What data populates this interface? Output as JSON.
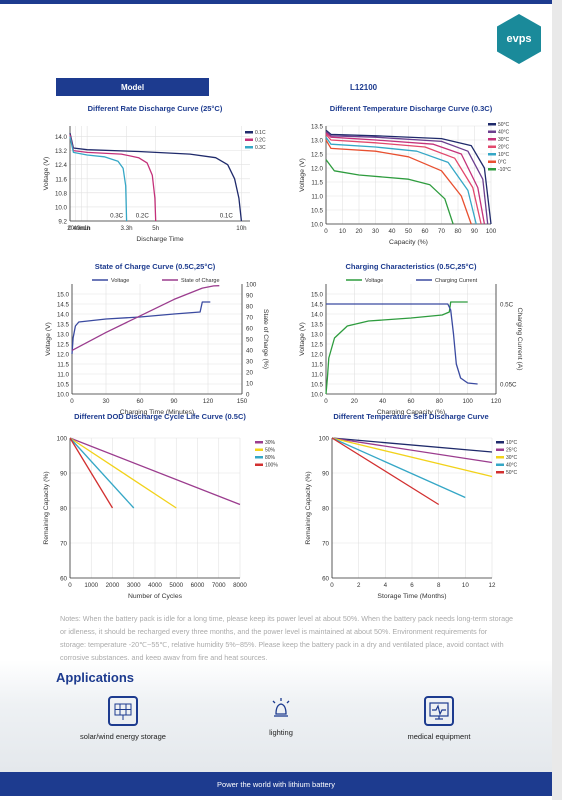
{
  "brand": {
    "logo_text": "evps"
  },
  "spec": {
    "model_label": "Model",
    "model_value": "L12100"
  },
  "chart_data": [
    {
      "id": "c1",
      "type": "line",
      "title": "Different Rate Discharge Curve (25°C)",
      "xlabel": "Discharge Time",
      "ylabel": "Voltage (V)",
      "xlim": [
        0,
        10.5
      ],
      "ylim": [
        9.2,
        14.6
      ],
      "xticks": [
        {
          "v": 0,
          "l": "0"
        },
        {
          "v": 0.33,
          "l": "20min"
        },
        {
          "v": 0.67,
          "l": "40min"
        },
        {
          "v": 1,
          "l": "1h"
        },
        {
          "v": 3.3,
          "l": "3.3h"
        },
        {
          "v": 5,
          "l": "5h"
        },
        {
          "v": 10,
          "l": "10h"
        }
      ],
      "yticks": [
        9.2,
        10.0,
        10.8,
        11.6,
        12.4,
        13.2,
        14.0
      ],
      "legend": "right",
      "annotations": [
        {
          "x": 3.1,
          "y": 9.4,
          "text": "0.3C"
        },
        {
          "x": 4.6,
          "y": 9.4,
          "text": "0.2C"
        },
        {
          "x": 9.5,
          "y": 9.4,
          "text": "0.1C"
        }
      ],
      "series": [
        {
          "name": "0.1C",
          "color": "#1f2a6b",
          "points": [
            [
              0,
              14.2
            ],
            [
              0.2,
              13.35
            ],
            [
              1,
              13.25
            ],
            [
              4,
              13.15
            ],
            [
              7,
              13.0
            ],
            [
              8.5,
              12.8
            ],
            [
              9.2,
              12.4
            ],
            [
              9.6,
              11.6
            ],
            [
              9.85,
              10.5
            ],
            [
              10,
              9.2
            ]
          ]
        },
        {
          "name": "0.2C",
          "color": "#c4317a",
          "points": [
            [
              0,
              14.1
            ],
            [
              0.2,
              13.2
            ],
            [
              1,
              13.1
            ],
            [
              3,
              13.0
            ],
            [
              4,
              12.8
            ],
            [
              4.5,
              12.5
            ],
            [
              4.8,
              11.8
            ],
            [
              4.95,
              10.5
            ],
            [
              5,
              9.2
            ]
          ]
        },
        {
          "name": "0.3C",
          "color": "#35a7c6",
          "points": [
            [
              0,
              14.0
            ],
            [
              0.2,
              13.1
            ],
            [
              1,
              12.95
            ],
            [
              2,
              12.85
            ],
            [
              2.8,
              12.6
            ],
            [
              3.1,
              12.2
            ],
            [
              3.25,
              11.2
            ],
            [
              3.3,
              9.2
            ]
          ]
        }
      ]
    },
    {
      "id": "c2",
      "type": "line",
      "title": "Different Temperature Discharge Curve (0.3C)",
      "xlabel": "Capacity (%)",
      "ylabel": "Voltage (V)",
      "xlim": [
        0,
        100
      ],
      "ylim": [
        10.0,
        13.5
      ],
      "xticks": [
        {
          "v": 0,
          "l": "0"
        },
        {
          "v": 10,
          "l": "10"
        },
        {
          "v": 20,
          "l": "20"
        },
        {
          "v": 30,
          "l": "30"
        },
        {
          "v": 40,
          "l": "40"
        },
        {
          "v": 50,
          "l": "50"
        },
        {
          "v": 60,
          "l": "60"
        },
        {
          "v": 70,
          "l": "70"
        },
        {
          "v": 80,
          "l": "80"
        },
        {
          "v": 90,
          "l": "90"
        },
        {
          "v": 100,
          "l": "100"
        }
      ],
      "yticks": [
        10.0,
        10.5,
        11.0,
        11.5,
        12.0,
        12.5,
        13.0,
        13.5
      ],
      "legend": "top-right",
      "series": [
        {
          "name": "50°C",
          "color": "#1f2a6b",
          "points": [
            [
              0,
              13.35
            ],
            [
              3,
              13.2
            ],
            [
              30,
              13.15
            ],
            [
              70,
              13.05
            ],
            [
              88,
              12.8
            ],
            [
              96,
              12.0
            ],
            [
              100,
              10.0
            ]
          ]
        },
        {
          "name": "40°C",
          "color": "#6b3f8f",
          "points": [
            [
              0,
              13.3
            ],
            [
              3,
              13.15
            ],
            [
              30,
              13.1
            ],
            [
              70,
              12.95
            ],
            [
              86,
              12.6
            ],
            [
              95,
              11.6
            ],
            [
              98,
              10.0
            ]
          ]
        },
        {
          "name": "30°C",
          "color": "#c4317a",
          "points": [
            [
              0,
              13.25
            ],
            [
              3,
              13.1
            ],
            [
              30,
              13.0
            ],
            [
              65,
              12.85
            ],
            [
              82,
              12.5
            ],
            [
              92,
              11.3
            ],
            [
              96,
              10.0
            ]
          ]
        },
        {
          "name": "20°C",
          "color": "#e2486c",
          "points": [
            [
              0,
              13.2
            ],
            [
              3,
              13.0
            ],
            [
              30,
              12.9
            ],
            [
              60,
              12.75
            ],
            [
              78,
              12.35
            ],
            [
              89,
              11.3
            ],
            [
              94,
              10.0
            ]
          ]
        },
        {
          "name": "10°C",
          "color": "#35a7c6",
          "points": [
            [
              0,
              13.1
            ],
            [
              3,
              12.85
            ],
            [
              30,
              12.75
            ],
            [
              55,
              12.6
            ],
            [
              74,
              12.2
            ],
            [
              86,
              11.2
            ],
            [
              91,
              10.0
            ]
          ]
        },
        {
          "name": "0°C",
          "color": "#e85030",
          "points": [
            [
              0,
              13.0
            ],
            [
              3,
              12.7
            ],
            [
              30,
              12.6
            ],
            [
              50,
              12.4
            ],
            [
              70,
              11.9
            ],
            [
              82,
              11.0
            ],
            [
              88,
              10.0
            ]
          ]
        },
        {
          "name": "-10°C",
          "color": "#2e9c3e",
          "points": [
            [
              0,
              12.3
            ],
            [
              5,
              11.9
            ],
            [
              20,
              11.75
            ],
            [
              50,
              11.6
            ],
            [
              63,
              11.4
            ],
            [
              72,
              10.9
            ],
            [
              77,
              10.0
            ]
          ]
        }
      ]
    },
    {
      "id": "c3",
      "type": "line",
      "title": "State of Charge Curve (0.5C,25°C)",
      "xlabel": "Charging Time (Minutes)",
      "ylabel": "Voltage (V)",
      "y2label": "State of Charge (%)",
      "xlim": [
        0,
        150
      ],
      "ylim": [
        10.0,
        15.5
      ],
      "y2lim": [
        0,
        100
      ],
      "xticks": [
        {
          "v": 0,
          "l": "0"
        },
        {
          "v": 30,
          "l": "30"
        },
        {
          "v": 60,
          "l": "60"
        },
        {
          "v": 90,
          "l": "90"
        },
        {
          "v": 120,
          "l": "120"
        },
        {
          "v": 150,
          "l": "150"
        }
      ],
      "yticks": [
        10.0,
        10.5,
        11.0,
        11.5,
        12.0,
        12.5,
        13.0,
        13.5,
        14.0,
        14.5,
        15.0
      ],
      "y2ticks": [
        0,
        10,
        20,
        30,
        40,
        50,
        60,
        70,
        80,
        90,
        100
      ],
      "legend": "top",
      "series": [
        {
          "name": "Voltage",
          "color": "#3a4aa0",
          "points": [
            [
              0,
              12.0
            ],
            [
              1,
              12.8
            ],
            [
              3,
              13.4
            ],
            [
              6,
              13.6
            ],
            [
              30,
              13.75
            ],
            [
              60,
              13.85
            ],
            [
              90,
              14.0
            ],
            [
              113,
              14.1
            ],
            [
              115,
              14.6
            ],
            [
              122,
              14.6
            ]
          ]
        },
        {
          "name": "State of Charge",
          "color": "#9b3c8e",
          "axis": "y2",
          "points": [
            [
              0,
              39.6
            ],
            [
              30,
              56
            ],
            [
              60,
              71
            ],
            [
              90,
              86
            ],
            [
              115,
              96.3
            ],
            [
              125,
              98.3
            ],
            [
              130,
              98.5
            ]
          ]
        }
      ]
    },
    {
      "id": "c4",
      "type": "line",
      "title": "Charging Characteristics (0.5C,25°C)",
      "xlabel": "Charging Capacity (%)",
      "ylabel": "Voltage (V)",
      "y2label": "Charging Current (A)",
      "xlim": [
        0,
        120
      ],
      "ylim": [
        10.0,
        15.5
      ],
      "xticks": [
        {
          "v": 0,
          "l": "0"
        },
        {
          "v": 20,
          "l": "20"
        },
        {
          "v": 40,
          "l": "40"
        },
        {
          "v": 60,
          "l": "60"
        },
        {
          "v": 80,
          "l": "80"
        },
        {
          "v": 100,
          "l": "100"
        },
        {
          "v": 120,
          "l": "120"
        }
      ],
      "yticks": [
        10.0,
        10.5,
        11.0,
        11.5,
        12.0,
        12.5,
        13.0,
        13.5,
        14.0,
        14.5,
        15.0
      ],
      "y2ticks_text": [
        {
          "y": 14.5,
          "l": "0.5C"
        },
        {
          "y": 10.5,
          "l": "0.05C"
        }
      ],
      "legend": "top",
      "series": [
        {
          "name": "Voltage",
          "color": "#2e9c3e",
          "points": [
            [
              0,
              10.0
            ],
            [
              1,
              10.8
            ],
            [
              2,
              11.8
            ],
            [
              6,
              12.8
            ],
            [
              15,
              13.4
            ],
            [
              30,
              13.65
            ],
            [
              60,
              13.8
            ],
            [
              82,
              13.95
            ],
            [
              87,
              14.1
            ],
            [
              88,
              14.6
            ],
            [
              100,
              14.6
            ]
          ]
        },
        {
          "name": "Charging Current",
          "color": "#3a4aa0",
          "points": [
            [
              0,
              14.5
            ],
            [
              86,
              14.5
            ],
            [
              88,
              14.2
            ],
            [
              90,
              13.0
            ],
            [
              92,
              11.5
            ],
            [
              95,
              10.8
            ],
            [
              100,
              10.55
            ],
            [
              107,
              10.5
            ]
          ]
        }
      ]
    },
    {
      "id": "c5",
      "type": "line",
      "title": "Different DOD Discharge Cycle Life Curve (0.5C)",
      "xlabel": "Number of Cycles",
      "ylabel": "Remaining Capacity (%)",
      "xlim": [
        0,
        8000
      ],
      "ylim": [
        60,
        100
      ],
      "xticks": [
        {
          "v": 0,
          "l": "0"
        },
        {
          "v": 1000,
          "l": "1000"
        },
        {
          "v": 2000,
          "l": "2000"
        },
        {
          "v": 3000,
          "l": "3000"
        },
        {
          "v": 4000,
          "l": "4000"
        },
        {
          "v": 5000,
          "l": "5000"
        },
        {
          "v": 6000,
          "l": "6000"
        },
        {
          "v": 7000,
          "l": "7000"
        },
        {
          "v": 8000,
          "l": "8000"
        }
      ],
      "yticks": [
        60,
        70,
        80,
        90,
        100
      ],
      "legend": "right",
      "series": [
        {
          "name": "30%",
          "color": "#9b3c8e",
          "points": [
            [
              0,
              100
            ],
            [
              8000,
              81
            ]
          ]
        },
        {
          "name": "50%",
          "color": "#f2d21a",
          "points": [
            [
              0,
              100
            ],
            [
              5000,
              80
            ]
          ]
        },
        {
          "name": "80%",
          "color": "#35a7c6",
          "points": [
            [
              0,
              100
            ],
            [
              3000,
              80
            ]
          ]
        },
        {
          "name": "100%",
          "color": "#d23030",
          "points": [
            [
              0,
              100
            ],
            [
              2000,
              80
            ]
          ]
        }
      ]
    },
    {
      "id": "c6",
      "type": "line",
      "title": "Different Temperature Self Discharge Curve",
      "xlabel": "Storage Time (Months)",
      "ylabel": "Remaining Capacity (%)",
      "xlim": [
        0,
        12
      ],
      "ylim": [
        60,
        100
      ],
      "xticks": [
        {
          "v": 0,
          "l": "0"
        },
        {
          "v": 2,
          "l": "2"
        },
        {
          "v": 4,
          "l": "4"
        },
        {
          "v": 6,
          "l": "6"
        },
        {
          "v": 8,
          "l": "8"
        },
        {
          "v": 10,
          "l": "10"
        },
        {
          "v": 12,
          "l": "12"
        }
      ],
      "yticks": [
        60,
        70,
        80,
        90,
        100
      ],
      "legend": "right",
      "series": [
        {
          "name": "10°C",
          "color": "#1f2a6b",
          "points": [
            [
              0,
              100
            ],
            [
              12,
              96
            ]
          ]
        },
        {
          "name": "25°C",
          "color": "#9b3c8e",
          "points": [
            [
              0,
              100
            ],
            [
              12,
              93
            ]
          ]
        },
        {
          "name": "30°C",
          "color": "#f2d21a",
          "points": [
            [
              0,
              100
            ],
            [
              12,
              89
            ]
          ]
        },
        {
          "name": "40°C",
          "color": "#35a7c6",
          "points": [
            [
              0,
              100
            ],
            [
              10,
              83
            ]
          ]
        },
        {
          "name": "50°C",
          "color": "#d23030",
          "points": [
            [
              0,
              100
            ],
            [
              8,
              81
            ]
          ]
        }
      ]
    }
  ],
  "notes": "Notes: When the battery pack is idle for a long time, please keep its power level at about 50%. When the battery pack needs long-term storage or idleness, it should be recharged every three months, and the power level is maintained at about 50%. Environment requirements for storage: temperature -20℃~55℃, relative humidity 5%~85%. Please keep the battery pack in a dry and ventilated place, avoid contact with corrosive substances, and keep away from fire and heat sources.",
  "applications": {
    "title": "Applications",
    "items": [
      {
        "label": "solar/wind energy storage",
        "icon": "solar-panel-icon"
      },
      {
        "label": "lighting",
        "icon": "lighting-icon"
      },
      {
        "label": "medical equipment",
        "icon": "medical-monitor-icon"
      }
    ]
  },
  "footer": {
    "tagline": "Power the world with lithium battery"
  },
  "colors": {
    "brand_blue": "#1d3b8f",
    "logo_teal": "#1a8a9a"
  }
}
